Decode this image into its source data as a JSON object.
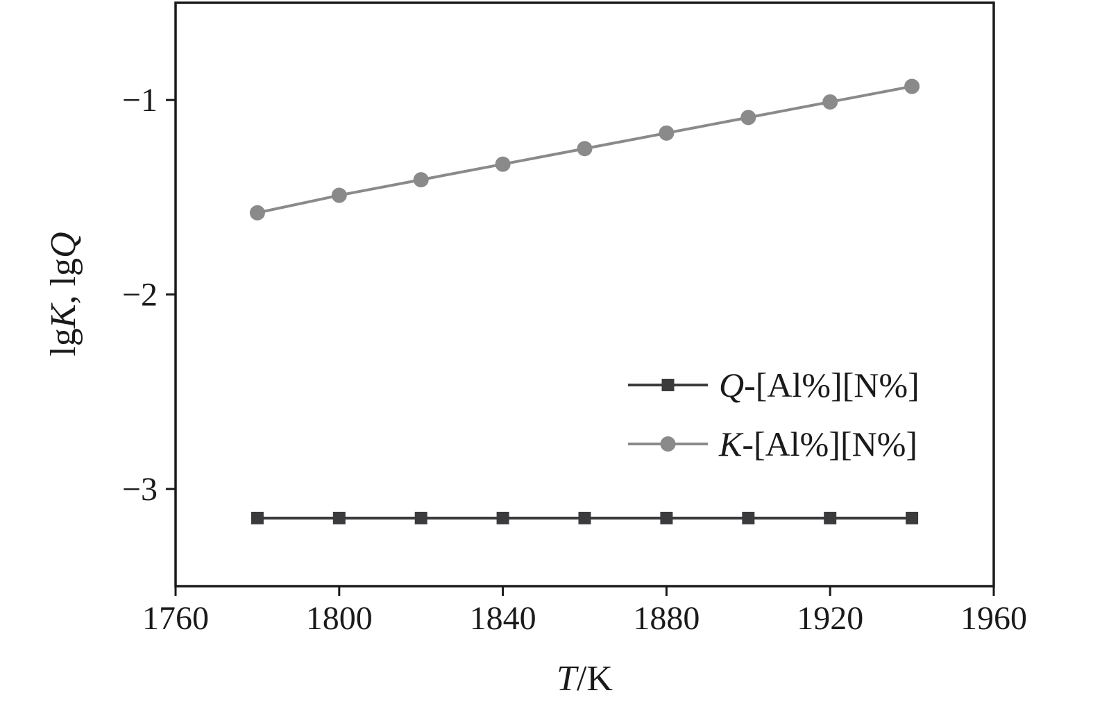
{
  "chart_data": {
    "type": "line",
    "xlabel_parts": [
      {
        "text": "T",
        "italic": true
      },
      {
        "text": "/K",
        "italic": false
      }
    ],
    "ylabel_parts": [
      {
        "text": "lg",
        "italic": false
      },
      {
        "text": "K",
        "italic": true
      },
      {
        "text": ", lg",
        "italic": false
      },
      {
        "text": "Q",
        "italic": true
      }
    ],
    "x": [
      1780,
      1800,
      1820,
      1840,
      1860,
      1880,
      1900,
      1920,
      1940
    ],
    "series": [
      {
        "name": "Q-[Al%][N%]",
        "name_parts": [
          {
            "text": "Q",
            "italic": true
          },
          {
            "text": "-[Al%][N%]",
            "italic": false
          }
        ],
        "marker": "square",
        "color": "#3b3b3d",
        "values": [
          -3.15,
          -3.15,
          -3.15,
          -3.15,
          -3.15,
          -3.15,
          -3.15,
          -3.15,
          -3.15
        ]
      },
      {
        "name": "K-[Al%][N%]",
        "name_parts": [
          {
            "text": "K",
            "italic": true
          },
          {
            "text": "-[Al%][N%]",
            "italic": false
          }
        ],
        "marker": "circle",
        "color": "#8a8a8a",
        "values": [
          -1.58,
          -1.49,
          -1.41,
          -1.33,
          -1.25,
          -1.17,
          -1.09,
          -1.01,
          -0.93
        ]
      }
    ],
    "xlim": [
      1760,
      1960
    ],
    "ylim": [
      -3.5,
      -0.5
    ],
    "x_ticks": [
      1760,
      1800,
      1840,
      1880,
      1920,
      1960
    ],
    "x_tick_labels": [
      "1760",
      "1800",
      "1840",
      "1880",
      "1920",
      "1960"
    ],
    "y_ticks": [
      -1,
      -2,
      -3
    ],
    "y_tick_labels": [
      "−1",
      "−2",
      "−3"
    ],
    "grid": "off",
    "legend_position": "inside-right-center",
    "frame_color": "#1a1a1a",
    "tick_label_color": "#1a1a1a"
  }
}
